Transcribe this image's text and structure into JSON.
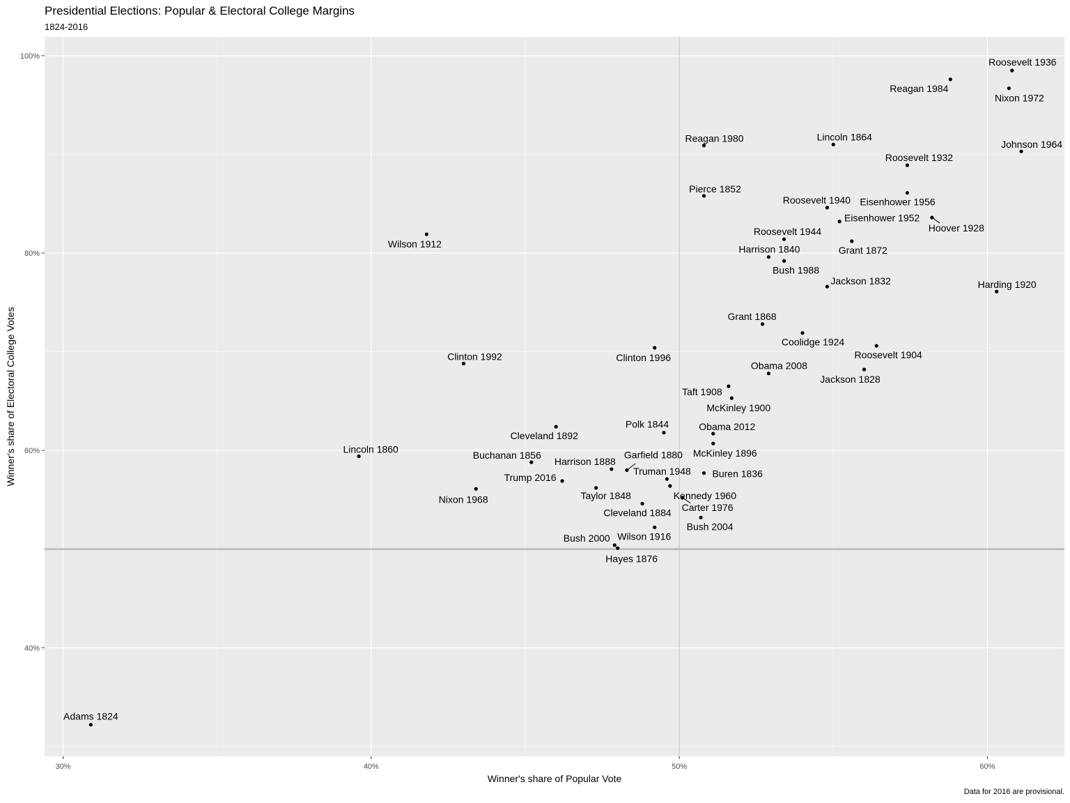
{
  "header": {
    "title": "Presidential Elections: Popular & Electoral College Margins",
    "subtitle": "1824-2016"
  },
  "caption": "Data for 2016 are provisional.",
  "chart_data": {
    "type": "scatter",
    "title": "Presidential Elections: Popular & Electoral College Margins",
    "subtitle": "1824-2016",
    "xlabel": "Winner's share of Popular Vote",
    "ylabel": "Winner's share of Electoral College Votes",
    "xlim": [
      0.294,
      0.625
    ],
    "ylim": [
      0.29,
      1.019
    ],
    "x_ticks": [
      0.3,
      0.4,
      0.5,
      0.6
    ],
    "x_tick_labels": [
      "30%",
      "40%",
      "50%",
      "60%"
    ],
    "y_ticks": [
      0.4,
      0.6,
      0.8,
      1.0
    ],
    "y_tick_labels": [
      "40%",
      "60%",
      "80%",
      "100%"
    ],
    "reference_lines": {
      "x": 0.5,
      "y": 0.5
    },
    "grid": true,
    "points": [
      {
        "label": "Adams 1824",
        "x": 0.309,
        "y": 0.322,
        "dx": 0,
        "dy": -7,
        "anchor": "middle"
      },
      {
        "label": "Jackson 1828",
        "x": 0.56,
        "y": 0.682,
        "dx": -20,
        "dy": 19,
        "anchor": "middle"
      },
      {
        "label": "Jackson 1832",
        "x": 0.548,
        "y": 0.766,
        "dx": 5,
        "dy": -3,
        "anchor": "start"
      },
      {
        "label": "Buren 1836",
        "x": 0.508,
        "y": 0.577,
        "dx": 12,
        "dy": 6,
        "anchor": "start"
      },
      {
        "label": "Harrison 1840",
        "x": 0.529,
        "y": 0.796,
        "dx": 1,
        "dy": -6,
        "anchor": "middle"
      },
      {
        "label": "Polk 1844",
        "x": 0.495,
        "y": 0.618,
        "dx": -24,
        "dy": -7,
        "anchor": "middle"
      },
      {
        "label": "Taylor 1848",
        "x": 0.473,
        "y": 0.562,
        "dx": 14,
        "dy": 16,
        "anchor": "middle"
      },
      {
        "label": "Pierce 1852",
        "x": 0.508,
        "y": 0.858,
        "dx": 16,
        "dy": -5,
        "anchor": "middle"
      },
      {
        "label": "Buchanan 1856",
        "x": 0.452,
        "y": 0.588,
        "dx": -35,
        "dy": -5,
        "anchor": "middle"
      },
      {
        "label": "Lincoln 1860",
        "x": 0.396,
        "y": 0.594,
        "dx": 17,
        "dy": -5,
        "anchor": "middle"
      },
      {
        "label": "Lincoln 1864",
        "x": 0.55,
        "y": 0.91,
        "dx": 16,
        "dy": -6,
        "anchor": "middle"
      },
      {
        "label": "Grant 1868",
        "x": 0.527,
        "y": 0.728,
        "dx": -15,
        "dy": -6,
        "anchor": "middle"
      },
      {
        "label": "Grant 1872",
        "x": 0.556,
        "y": 0.812,
        "dx": 16,
        "dy": 18,
        "anchor": "middle"
      },
      {
        "label": "Hayes 1876",
        "x": 0.48,
        "y": 0.501,
        "dx": 20,
        "dy": 20,
        "anchor": "middle"
      },
      {
        "label": "Garfield 1880",
        "x": 0.483,
        "y": 0.58,
        "dx": 38,
        "dy": -17,
        "anchor": "middle",
        "leader": true
      },
      {
        "label": "Cleveland 1884",
        "x": 0.488,
        "y": 0.546,
        "dx": -7,
        "dy": 18,
        "anchor": "middle"
      },
      {
        "label": "Harrison 1888",
        "x": 0.478,
        "y": 0.581,
        "dx": -38,
        "dy": -6,
        "anchor": "middle"
      },
      {
        "label": "Cleveland 1892",
        "x": 0.46,
        "y": 0.624,
        "dx": -17,
        "dy": 18,
        "anchor": "middle"
      },
      {
        "label": "McKinley 1896",
        "x": 0.511,
        "y": 0.607,
        "dx": 17,
        "dy": 19,
        "anchor": "middle"
      },
      {
        "label": "McKinley 1900",
        "x": 0.517,
        "y": 0.653,
        "dx": 10,
        "dy": 19,
        "anchor": "middle"
      },
      {
        "label": "Roosevelt 1904",
        "x": 0.564,
        "y": 0.706,
        "dx": 17,
        "dy": 18,
        "anchor": "middle"
      },
      {
        "label": "Taft 1908",
        "x": 0.516,
        "y": 0.665,
        "dx": -38,
        "dy": 13,
        "anchor": "middle"
      },
      {
        "label": "Wilson 1912",
        "x": 0.418,
        "y": 0.819,
        "dx": -17,
        "dy": 19,
        "anchor": "middle"
      },
      {
        "label": "Wilson 1916",
        "x": 0.492,
        "y": 0.522,
        "dx": -15,
        "dy": 18,
        "anchor": "middle"
      },
      {
        "label": "Harding 1920",
        "x": 0.603,
        "y": 0.761,
        "dx": 15,
        "dy": -5,
        "anchor": "middle"
      },
      {
        "label": "Coolidge 1924",
        "x": 0.54,
        "y": 0.719,
        "dx": 15,
        "dy": 18,
        "anchor": "middle"
      },
      {
        "label": "Hoover 1928",
        "x": 0.582,
        "y": 0.836,
        "dx": 35,
        "dy": 20,
        "anchor": "middle",
        "leader": true
      },
      {
        "label": "Roosevelt 1932",
        "x": 0.574,
        "y": 0.889,
        "dx": 17,
        "dy": -6,
        "anchor": "middle"
      },
      {
        "label": "Roosevelt 1936",
        "x": 0.608,
        "y": 0.985,
        "dx": 15,
        "dy": -7,
        "anchor": "middle"
      },
      {
        "label": "Roosevelt 1940",
        "x": 0.548,
        "y": 0.846,
        "dx": -15,
        "dy": -6,
        "anchor": "middle"
      },
      {
        "label": "Roosevelt 1944",
        "x": 0.534,
        "y": 0.814,
        "dx": 5,
        "dy": -6,
        "anchor": "middle"
      },
      {
        "label": "Truman 1948",
        "x": 0.496,
        "y": 0.571,
        "dx": -7,
        "dy": -6,
        "anchor": "middle"
      },
      {
        "label": "Eisenhower 1952",
        "x": 0.552,
        "y": 0.832,
        "dx": 61,
        "dy": 0,
        "anchor": "middle"
      },
      {
        "label": "Eisenhower 1956",
        "x": 0.574,
        "y": 0.861,
        "dx": -14,
        "dy": 18,
        "anchor": "middle"
      },
      {
        "label": "Kennedy 1960",
        "x": 0.497,
        "y": 0.564,
        "dx": 50,
        "dy": 19,
        "anchor": "middle"
      },
      {
        "label": "Johnson 1964",
        "x": 0.611,
        "y": 0.903,
        "dx": 15,
        "dy": -5,
        "anchor": "middle"
      },
      {
        "label": "Nixon 1968",
        "x": 0.434,
        "y": 0.561,
        "dx": -18,
        "dy": 20,
        "anchor": "middle"
      },
      {
        "label": "Nixon 1972",
        "x": 0.607,
        "y": 0.967,
        "dx": 15,
        "dy": 19,
        "anchor": "middle"
      },
      {
        "label": "Carter 1976",
        "x": 0.501,
        "y": 0.552,
        "dx": 36,
        "dy": 19,
        "anchor": "middle",
        "leader": true
      },
      {
        "label": "Reagan 1980",
        "x": 0.508,
        "y": 0.909,
        "dx": 15,
        "dy": -5,
        "anchor": "middle"
      },
      {
        "label": "Reagan 1984",
        "x": 0.588,
        "y": 0.976,
        "dx": -45,
        "dy": 18,
        "anchor": "middle"
      },
      {
        "label": "Bush 1988",
        "x": 0.534,
        "y": 0.792,
        "dx": 17,
        "dy": 18,
        "anchor": "middle"
      },
      {
        "label": "Clinton 1992",
        "x": 0.43,
        "y": 0.688,
        "dx": 16,
        "dy": -5,
        "anchor": "middle"
      },
      {
        "label": "Clinton 1996",
        "x": 0.492,
        "y": 0.704,
        "dx": -16,
        "dy": 19,
        "anchor": "middle"
      },
      {
        "label": "Bush 2000",
        "x": 0.479,
        "y": 0.504,
        "dx": -40,
        "dy": -5,
        "anchor": "middle"
      },
      {
        "label": "Bush 2004",
        "x": 0.507,
        "y": 0.532,
        "dx": 13,
        "dy": 18,
        "anchor": "middle"
      },
      {
        "label": "Obama 2008",
        "x": 0.529,
        "y": 0.678,
        "dx": 15,
        "dy": -6,
        "anchor": "middle"
      },
      {
        "label": "Obama 2012",
        "x": 0.511,
        "y": 0.617,
        "dx": 20,
        "dy": -5,
        "anchor": "middle"
      },
      {
        "label": "Trump 2016",
        "x": 0.462,
        "y": 0.569,
        "dx": -46,
        "dy": 0,
        "anchor": "middle"
      }
    ]
  }
}
